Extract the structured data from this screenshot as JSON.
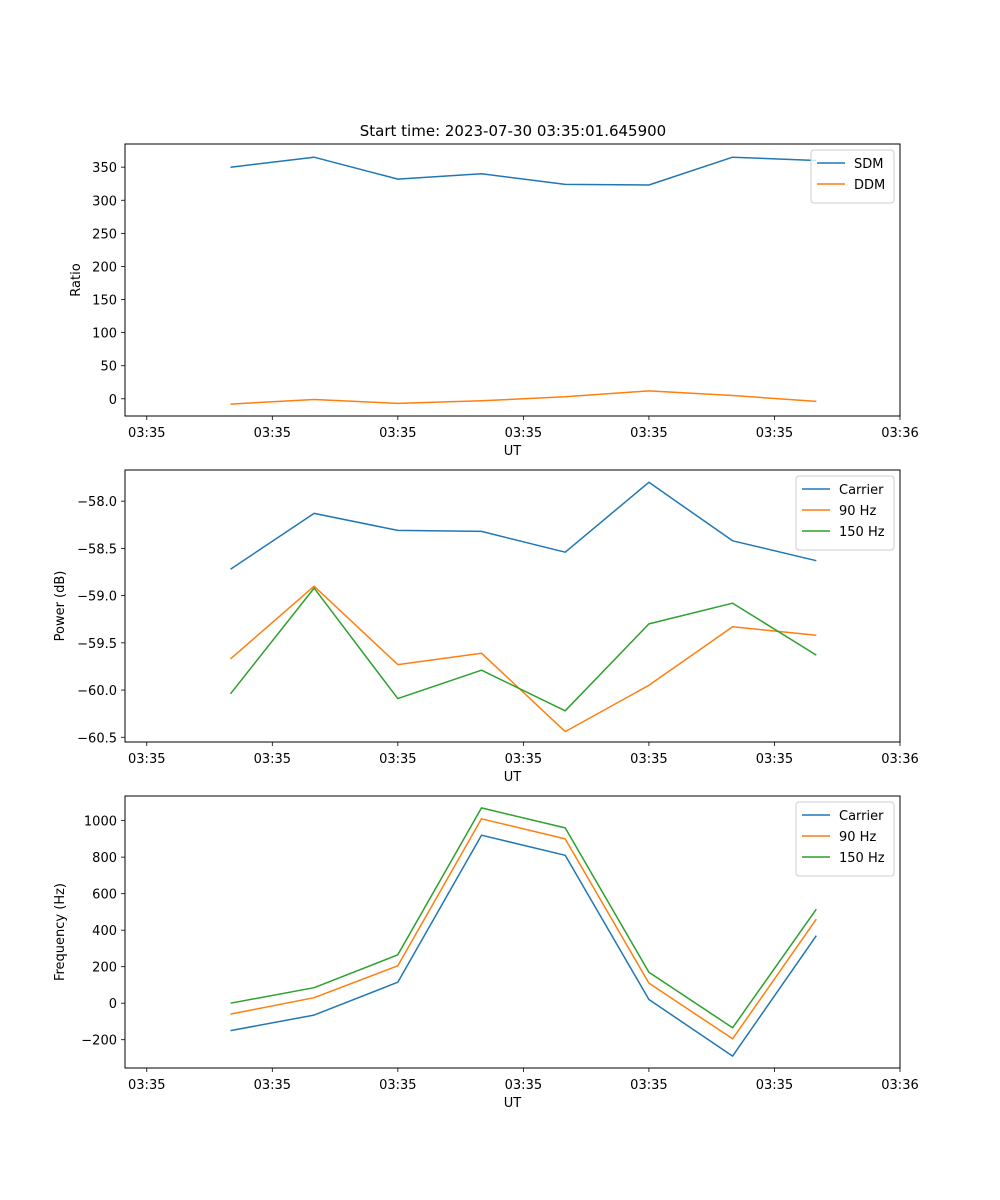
{
  "figure": {
    "title": "Start time: 2023-07-30 03:35:01.645900"
  },
  "colors": {
    "c0": "#1f77b4",
    "c1": "#ff7f0e",
    "c2": "#2ca02c",
    "axis": "#000000",
    "background": "#ffffff"
  },
  "chart_data": [
    {
      "type": "line",
      "title": "Start time: 2023-07-30 03:35:01.645900",
      "xlabel": "UT",
      "ylabel": "Ratio",
      "x": [
        0.5,
        1.0,
        1.5,
        2.0,
        2.5,
        3.0,
        3.5,
        4.0
      ],
      "xlim": [
        -0.13,
        4.5
      ],
      "xticks": [
        0,
        0.75,
        1.5,
        2.25,
        3.0,
        3.75,
        4.5
      ],
      "xtick_labels": [
        "03:35",
        "03:35",
        "03:35",
        "03:35",
        "03:35",
        "03:35",
        "03:36"
      ],
      "ylim": [
        -26,
        385
      ],
      "yticks": [
        0,
        50,
        100,
        150,
        200,
        250,
        300,
        350
      ],
      "ytick_labels": [
        "0",
        "50",
        "100",
        "150",
        "200",
        "250",
        "300",
        "350"
      ],
      "legend_position": "top-right",
      "series": [
        {
          "name": "SDM",
          "color": "#1f77b4",
          "values": [
            350,
            365,
            332,
            340,
            324,
            323,
            365,
            360
          ]
        },
        {
          "name": "DDM",
          "color": "#ff7f0e",
          "values": [
            -8,
            -1,
            -7,
            -3,
            3,
            12,
            5,
            -4
          ]
        }
      ]
    },
    {
      "type": "line",
      "title": "",
      "xlabel": "UT",
      "ylabel": "Power (dB)",
      "x": [
        0.5,
        1.0,
        1.5,
        2.0,
        2.5,
        3.0,
        3.5,
        4.0
      ],
      "xlim": [
        -0.13,
        4.5
      ],
      "xticks": [
        0,
        0.75,
        1.5,
        2.25,
        3.0,
        3.75,
        4.5
      ],
      "xtick_labels": [
        "03:35",
        "03:35",
        "03:35",
        "03:35",
        "03:35",
        "03:35",
        "03:36"
      ],
      "ylim": [
        -60.55,
        -57.67
      ],
      "yticks": [
        -60.5,
        -60.0,
        -59.5,
        -59.0,
        -58.5,
        -58.0
      ],
      "ytick_labels": [
        "−60.5",
        "−60.0",
        "−59.5",
        "−59.0",
        "−58.5",
        "−58.0"
      ],
      "legend_position": "top-right",
      "series": [
        {
          "name": "Carrier",
          "color": "#1f77b4",
          "values": [
            -58.72,
            -58.13,
            -58.31,
            -58.32,
            -58.54,
            -57.8,
            -58.42,
            -58.63
          ]
        },
        {
          "name": "90 Hz",
          "color": "#ff7f0e",
          "values": [
            -59.67,
            -58.9,
            -59.73,
            -59.61,
            -60.44,
            -59.95,
            -59.33,
            -59.42
          ]
        },
        {
          "name": "150 Hz",
          "color": "#2ca02c",
          "values": [
            -60.04,
            -58.92,
            -60.09,
            -59.79,
            -60.22,
            -59.3,
            -59.08,
            -59.63
          ]
        }
      ]
    },
    {
      "type": "line",
      "title": "",
      "xlabel": "UT",
      "ylabel": "Frequency (Hz)",
      "x": [
        0.5,
        1.0,
        1.5,
        2.0,
        2.5,
        3.0,
        3.5,
        4.0
      ],
      "xlim": [
        -0.13,
        4.5
      ],
      "xticks": [
        0,
        0.75,
        1.5,
        2.25,
        3.0,
        3.75,
        4.5
      ],
      "xtick_labels": [
        "03:35",
        "03:35",
        "03:35",
        "03:35",
        "03:35",
        "03:35",
        "03:36"
      ],
      "ylim": [
        -355,
        1135
      ],
      "yticks": [
        -200,
        0,
        200,
        400,
        600,
        800,
        1000
      ],
      "ytick_labels": [
        "−200",
        "0",
        "200",
        "400",
        "600",
        "800",
        "1000"
      ],
      "legend_position": "top-right",
      "series": [
        {
          "name": "Carrier",
          "color": "#1f77b4",
          "values": [
            -150,
            -65,
            115,
            920,
            810,
            20,
            -290,
            370
          ]
        },
        {
          "name": "90 Hz",
          "color": "#ff7f0e",
          "values": [
            -60,
            30,
            205,
            1010,
            900,
            110,
            -195,
            460
          ]
        },
        {
          "name": "150 Hz",
          "color": "#2ca02c",
          "values": [
            0,
            85,
            265,
            1070,
            960,
            170,
            -135,
            515
          ]
        }
      ]
    }
  ]
}
